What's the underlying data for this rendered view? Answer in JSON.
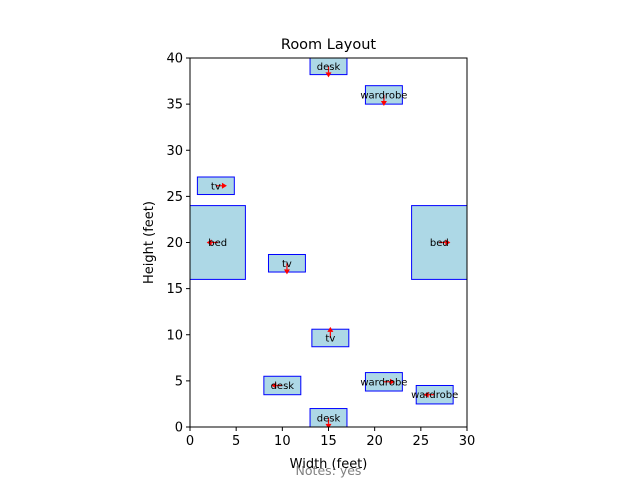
{
  "chart_data": {
    "type": "scatter",
    "title": "Room Layout",
    "xlabel": "Width (feet)",
    "ylabel": "Height (feet)",
    "footnote": "Notes: yes",
    "xlim": [
      0,
      30
    ],
    "ylim": [
      0,
      40
    ],
    "xticks": [
      "0",
      "5",
      "10",
      "15",
      "20",
      "25",
      "30"
    ],
    "yticks": [
      "0",
      "5",
      "10",
      "15",
      "20",
      "25",
      "30",
      "35",
      "40"
    ],
    "items": [
      {
        "label": "desk",
        "x0": 13,
        "y0": 38.2,
        "x1": 17,
        "y1": 40,
        "dir": "down"
      },
      {
        "label": "wardrobe",
        "x0": 19,
        "y0": 35,
        "x1": 23,
        "y1": 37,
        "dir": "down"
      },
      {
        "label": "tv",
        "x0": 0.8,
        "y0": 25.2,
        "x1": 4.8,
        "y1": 27.1,
        "dir": "right"
      },
      {
        "label": "bed",
        "x0": 0,
        "y0": 16,
        "x1": 6,
        "y1": 24,
        "dir": "left"
      },
      {
        "label": "bed",
        "x0": 24,
        "y0": 16,
        "x1": 30,
        "y1": 24,
        "dir": "right"
      },
      {
        "label": "tv",
        "x0": 8.5,
        "y0": 16.8,
        "x1": 12.5,
        "y1": 18.7,
        "dir": "down"
      },
      {
        "label": "tv",
        "x0": 13.2,
        "y0": 8.7,
        "x1": 17.2,
        "y1": 10.6,
        "dir": "up"
      },
      {
        "label": "wardrobe",
        "x0": 19,
        "y0": 3.9,
        "x1": 23,
        "y1": 5.9,
        "dir": "right"
      },
      {
        "label": "desk",
        "x0": 8,
        "y0": 3.5,
        "x1": 12,
        "y1": 5.5,
        "dir": "left"
      },
      {
        "label": "wardrobe",
        "x0": 24.5,
        "y0": 2.5,
        "x1": 28.5,
        "y1": 4.5,
        "dir": "left"
      },
      {
        "label": "desk",
        "x0": 13,
        "y0": 0,
        "x1": 17,
        "y1": 2,
        "dir": "down"
      }
    ],
    "colors": {
      "box_fill": "#add8e6",
      "box_edge": "#0000ff",
      "arrow": "#ff0000",
      "axis": "#000000",
      "footnote": "#808080"
    }
  }
}
